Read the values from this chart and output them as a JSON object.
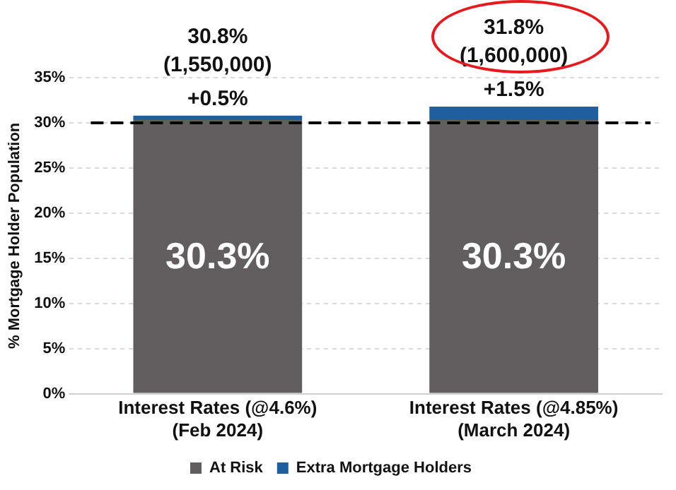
{
  "chart_data": {
    "type": "bar",
    "stacked": true,
    "ylabel": "% Mortgage Holder Population",
    "categories": [
      "Interest Rates (@4.6%) (Feb 2024)",
      "Interest Rates (@4.85%) (March 2024)"
    ],
    "series": [
      {
        "name": "At Risk",
        "color": "#625e5f",
        "values": [
          30.3,
          30.3
        ],
        "value_labels": [
          "30.3%",
          "30.3%"
        ]
      },
      {
        "name": "Extra Mortgage Holders",
        "color": "#1f5fa0",
        "values": [
          0.5,
          1.5
        ],
        "value_labels": [
          "+0.5%",
          "+1.5%"
        ]
      }
    ],
    "ylim": [
      0,
      35
    ],
    "yticks": [
      {
        "value": 0,
        "label": "0%"
      },
      {
        "value": 5,
        "label": "5%"
      },
      {
        "value": 10,
        "label": "10%"
      },
      {
        "value": 15,
        "label": "15%"
      },
      {
        "value": 20,
        "label": "20%"
      },
      {
        "value": 25,
        "label": "25%"
      },
      {
        "value": 30,
        "label": "30%"
      },
      {
        "value": 35,
        "label": "35%"
      }
    ],
    "ref_lines": [
      {
        "axis": "y",
        "value": 30,
        "color": "#000000",
        "line_style": "dashed"
      }
    ],
    "annotations": [
      {
        "text": "30.8%\n(1,550,000)",
        "x": "Interest Rates (@4.6%) (Feb 2024)",
        "y": 30.8
      },
      {
        "text": "31.8%\n(1,600,000)",
        "x": "Interest Rates (@4.85%) (March 2024)",
        "y": 31.8
      }
    ],
    "grid": "y",
    "legend": "bottom"
  }
}
